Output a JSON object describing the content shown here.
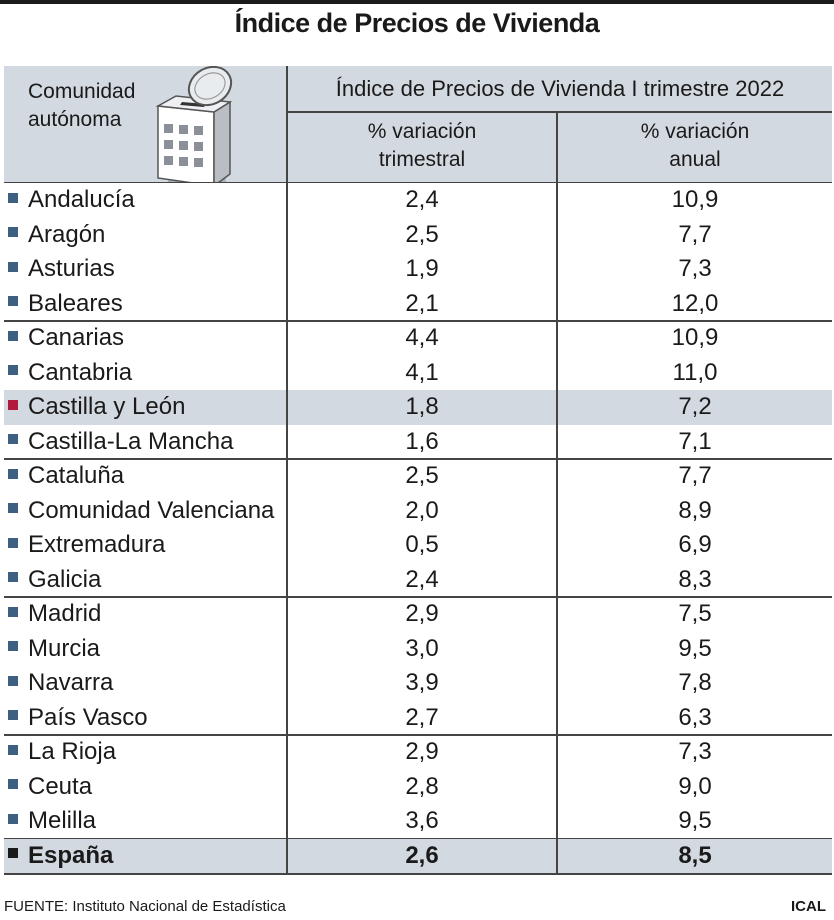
{
  "title": "Índice de Precios de Vivienda",
  "header": {
    "region_line1": "Comunidad",
    "region_line2": "autónoma",
    "group": "Índice de Precios de Vivienda I trimestre 2022",
    "col1_line1": "% variación",
    "col1_line2": "trimestral",
    "col2_line1": "% variación",
    "col2_line2": "anual",
    "icon": "building-coin-icon"
  },
  "chart_data": {
    "type": "table",
    "title": "Índice de Precios de Vivienda",
    "columns": [
      "Comunidad autónoma",
      "% variación trimestral",
      "% variación anual"
    ],
    "rows": [
      {
        "region": "Andalucía",
        "trimestral": "2,4",
        "anual": "10,9"
      },
      {
        "region": "Aragón",
        "trimestral": "2,5",
        "anual": "7,7"
      },
      {
        "region": "Asturias",
        "trimestral": "1,9",
        "anual": "7,3"
      },
      {
        "region": "Baleares",
        "trimestral": "2,1",
        "anual": "12,0"
      },
      {
        "region": "Canarias",
        "trimestral": "4,4",
        "anual": "10,9"
      },
      {
        "region": "Cantabria",
        "trimestral": "4,1",
        "anual": "11,0"
      },
      {
        "region": "Castilla y León",
        "trimestral": "1,8",
        "anual": "7,2"
      },
      {
        "region": "Castilla-La Mancha",
        "trimestral": "1,6",
        "anual": "7,1"
      },
      {
        "region": "Cataluña",
        "trimestral": "2,5",
        "anual": "7,7"
      },
      {
        "region": "Comunidad Valenciana",
        "trimestral": "2,0",
        "anual": "8,9"
      },
      {
        "region": "Extremadura",
        "trimestral": "0,5",
        "anual": "6,9"
      },
      {
        "region": "Galicia",
        "trimestral": "2,4",
        "anual": "8,3"
      },
      {
        "region": "Madrid",
        "trimestral": "2,9",
        "anual": "7,5"
      },
      {
        "region": "Murcia",
        "trimestral": "3,0",
        "anual": "9,5"
      },
      {
        "region": "Navarra",
        "trimestral": "3,9",
        "anual": "7,8"
      },
      {
        "region": "País Vasco",
        "trimestral": "2,7",
        "anual": "6,3"
      },
      {
        "region": "La Rioja",
        "trimestral": "2,9",
        "anual": "7,3"
      },
      {
        "region": "Ceuta",
        "trimestral": "2,8",
        "anual": "9,0"
      },
      {
        "region": "Melilla",
        "trimestral": "3,6",
        "anual": "9,5"
      },
      {
        "region": "España",
        "trimestral": "2,6",
        "anual": "8,5"
      }
    ],
    "highlighted_row": "Castilla y León",
    "total_row": "España",
    "colors": {
      "header_bg": "#d3d9e1",
      "bullet": "#3d5f82",
      "highlight_bullet": "#b0183c",
      "total_bullet": "#1a1a1a"
    }
  },
  "footer": {
    "source": "FUENTE: Instituto Nacional de Estadística",
    "credit": "ICAL"
  }
}
